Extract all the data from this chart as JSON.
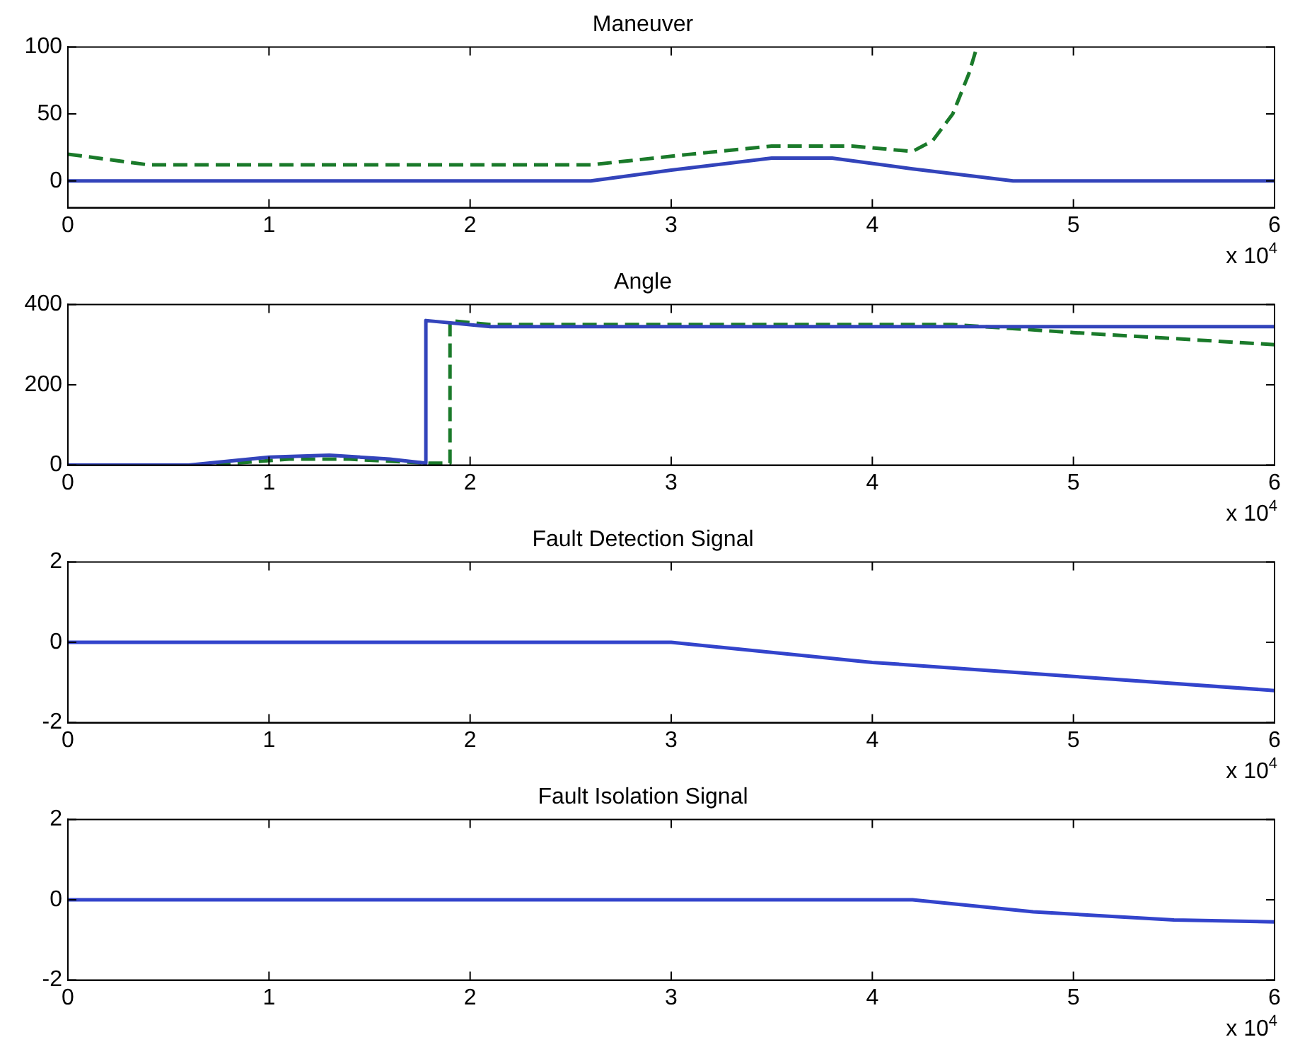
{
  "chart_data": [
    {
      "type": "line",
      "title": "Maneuver",
      "xlim": [
        0,
        6
      ],
      "xticks": [
        0,
        1,
        2,
        3,
        4,
        5,
        6
      ],
      "ylim": [
        -20,
        100
      ],
      "yticks": [
        0,
        50,
        100
      ],
      "annotations": [
        "x 10$^{4}$"
      ],
      "series": [
        {
          "color": "#3344bb",
          "line_style": "solid",
          "x": [
            0,
            2.6,
            3.0,
            3.5,
            3.8,
            4.2,
            4.7,
            6
          ],
          "values": [
            0,
            0,
            8,
            17,
            17,
            9,
            0,
            0
          ]
        },
        {
          "color": "#1a7a2a",
          "line_style": "dashed",
          "x": [
            0,
            0.4,
            2.6,
            3.1,
            3.5,
            3.9,
            4.2,
            4.3,
            4.4,
            4.48,
            4.52
          ],
          "values": [
            20,
            12,
            12,
            20,
            26,
            26,
            22,
            30,
            50,
            80,
            100
          ]
        }
      ]
    },
    {
      "type": "line",
      "title": "Angle",
      "xlim": [
        0,
        6
      ],
      "xticks": [
        0,
        1,
        2,
        3,
        4,
        5,
        6
      ],
      "ylim": [
        0,
        400
      ],
      "yticks": [
        0,
        200,
        400
      ],
      "annotations": [
        "x 10$^{4}$"
      ],
      "series": [
        {
          "color": "#3344bb",
          "line_style": "solid",
          "x": [
            0,
            0.6,
            1.0,
            1.3,
            1.6,
            1.78,
            1.78,
            2.1,
            6
          ],
          "values": [
            0,
            0,
            20,
            25,
            15,
            5,
            360,
            345,
            345
          ]
        },
        {
          "color": "#1a7a2a",
          "line_style": "dashed",
          "x": [
            0,
            0.7,
            1.1,
            1.4,
            1.8,
            1.9,
            1.9,
            2.1,
            4.4,
            5.0,
            6
          ],
          "values": [
            0,
            0,
            15,
            15,
            5,
            5,
            360,
            350,
            350,
            330,
            300
          ]
        }
      ]
    },
    {
      "type": "line",
      "title": "Fault Detection Signal",
      "xlim": [
        0,
        6
      ],
      "xticks": [
        0,
        1,
        2,
        3,
        4,
        5,
        6
      ],
      "ylim": [
        -2,
        2
      ],
      "yticks": [
        -2,
        0,
        2
      ],
      "annotations": [
        "x 10$^{4}$"
      ],
      "series": [
        {
          "color": "#3344cc",
          "line_style": "solid",
          "x": [
            0,
            3,
            4,
            5,
            6
          ],
          "values": [
            0,
            0,
            -0.5,
            -0.85,
            -1.2
          ]
        }
      ]
    },
    {
      "type": "line",
      "title": "Fault Isolation Signal",
      "xlim": [
        0,
        6
      ],
      "xticks": [
        0,
        1,
        2,
        3,
        4,
        5,
        6
      ],
      "ylim": [
        -2,
        2
      ],
      "yticks": [
        -2,
        0,
        2
      ],
      "annotations": [
        "x 10$^{4}$"
      ],
      "series": [
        {
          "color": "#3344cc",
          "line_style": "solid",
          "x": [
            0,
            4.2,
            4.8,
            5.5,
            6
          ],
          "values": [
            0,
            0,
            -0.3,
            -0.5,
            -0.55
          ]
        }
      ]
    }
  ]
}
